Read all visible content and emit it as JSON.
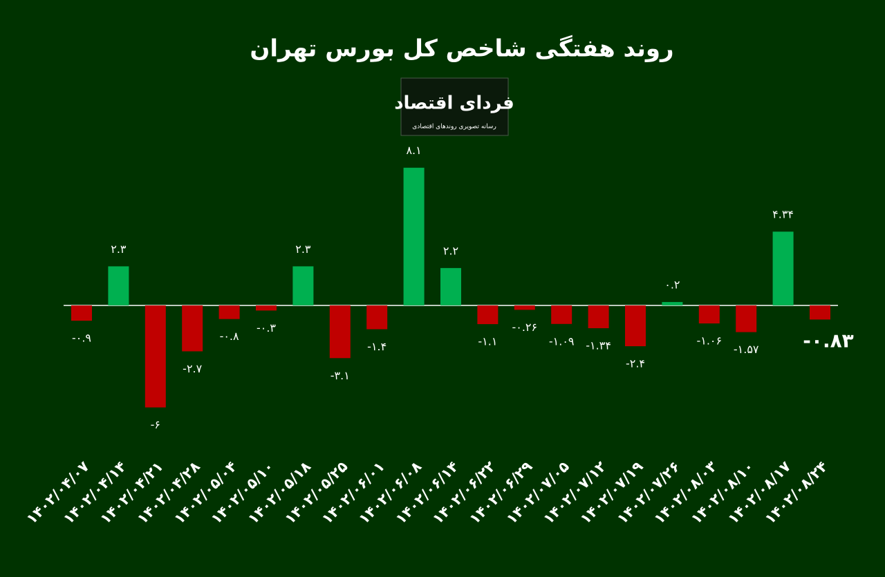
{
  "chart_data": {
    "type": "bar",
    "title": "روند هفتگی شاخص کل بورس تهران",
    "categories": [
      "۱۴۰۲/۰۴/۰۷",
      "۱۴۰۲/۰۴/۱۴",
      "۱۴۰۲/۰۴/۲۱",
      "۱۴۰۲/۰۴/۲۸",
      "۱۴۰۲/۰۵/۰۴",
      "۱۴۰۲/۰۵/۱۰",
      "۱۴۰۲/۰۵/۱۸",
      "۱۴۰۲/۰۵/۲۵",
      "۱۴۰۲/۰۶/۰۱",
      "۱۴۰۲/۰۶/۰۸",
      "۱۴۰۲/۰۶/۱۴",
      "۱۴۰۲/۰۶/۲۲",
      "۱۴۰۲/۰۶/۲۹",
      "۱۴۰۲/۰۷/۰۵",
      "۱۴۰۲/۰۷/۱۲",
      "۱۴۰۲/۰۷/۱۹",
      "۱۴۰۲/۰۷/۲۶",
      "۱۴۰۲/۰۸/۰۳",
      "۱۴۰۲/۰۸/۱۰",
      "۱۴۰۲/۰۸/۱۷",
      "۱۴۰۲/۰۸/۲۴"
    ],
    "values": [
      -0.9,
      2.3,
      -6,
      -2.7,
      -0.8,
      -0.3,
      2.3,
      -3.1,
      -1.4,
      8.1,
      2.2,
      -1.1,
      -0.26,
      -1.09,
      -1.34,
      -2.4,
      0.2,
      -1.06,
      -1.57,
      4.34,
      -0.83
    ],
    "value_labels": [
      "-۰.۹",
      "۲.۳",
      "-۶",
      "-۲.۷",
      "-۰.۸",
      "-۰.۳",
      "۲.۳",
      "-۳.۱",
      "-۱.۴",
      "۸.۱",
      "۲.۲",
      "-۱.۱",
      "-۰.۲۶",
      "-۱.۰۹",
      "-۱.۳۴",
      "-۲.۴",
      "۰.۲",
      "-۱.۰۶",
      "-۱.۵۷",
      "۴.۳۴",
      "-۰.۸۳"
    ],
    "colors": {
      "positive": "#00b050",
      "negative": "#c00000"
    }
  },
  "logo": {
    "name": "فردای اقتصاد",
    "tagline": "رسانه تصویری روندهای اقتصادی"
  }
}
